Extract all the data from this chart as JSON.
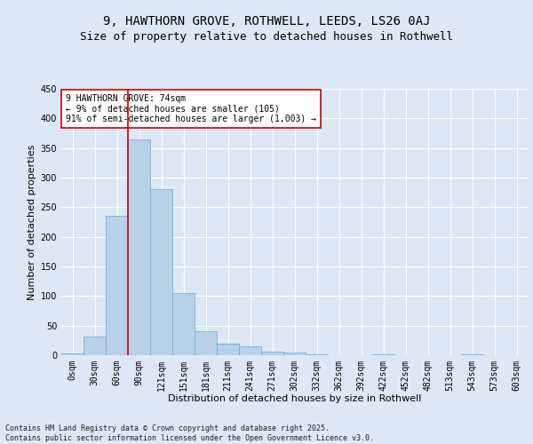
{
  "title1": "9, HAWTHORN GROVE, ROTHWELL, LEEDS, LS26 0AJ",
  "title2": "Size of property relative to detached houses in Rothwell",
  "xlabel": "Distribution of detached houses by size in Rothwell",
  "ylabel": "Number of detached properties",
  "categories": [
    "0sqm",
    "30sqm",
    "60sqm",
    "90sqm",
    "121sqm",
    "151sqm",
    "181sqm",
    "211sqm",
    "241sqm",
    "271sqm",
    "302sqm",
    "332sqm",
    "362sqm",
    "392sqm",
    "422sqm",
    "452sqm",
    "482sqm",
    "513sqm",
    "543sqm",
    "573sqm",
    "603sqm"
  ],
  "values": [
    3,
    31,
    236,
    365,
    281,
    105,
    40,
    20,
    15,
    6,
    5,
    1,
    0,
    0,
    1,
    0,
    0,
    0,
    2,
    0,
    0
  ],
  "bar_color": "#b8d0e8",
  "bar_edge_color": "#6aaad4",
  "vline_color": "#cc0000",
  "vline_x_index": 2.5,
  "annotation_text": "9 HAWTHORN GROVE: 74sqm\n← 9% of detached houses are smaller (105)\n91% of semi-detached houses are larger (1,003) →",
  "annotation_box_color": "#ffffff",
  "annotation_box_edge": "#cc0000",
  "footer": "Contains HM Land Registry data © Crown copyright and database right 2025.\nContains public sector information licensed under the Open Government Licence v3.0.",
  "ylim": [
    0,
    450
  ],
  "yticks": [
    0,
    50,
    100,
    150,
    200,
    250,
    300,
    350,
    400,
    450
  ],
  "background_color": "#dce8f5",
  "plot_background": "#dce8f5",
  "grid_color": "#ffffff",
  "title1_fontsize": 10,
  "title2_fontsize": 9,
  "axis_fontsize": 8,
  "tick_fontsize": 7,
  "annot_fontsize": 7,
  "footer_fontsize": 6
}
